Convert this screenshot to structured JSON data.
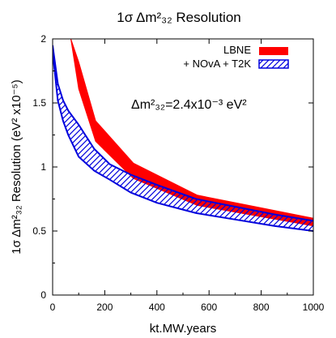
{
  "chart_data": {
    "type": "area",
    "title": "1σ Δm²₃₂ Resolution",
    "xlabel": "kt.MW.years",
    "ylabel": "1σ Δm²₃₂ Resolution (eV² x10⁻⁵)",
    "xlim": [
      0,
      1000
    ],
    "ylim": [
      0,
      2
    ],
    "xticks": [
      0,
      200,
      400,
      600,
      800,
      1000
    ],
    "yticks": [
      0,
      0.5,
      1,
      1.5,
      2
    ],
    "x_tick_labels": [
      "0",
      "200",
      "400",
      "600",
      "800",
      "1000"
    ],
    "y_tick_labels": [
      "0",
      "0.5",
      "1",
      "1.5",
      "2"
    ],
    "grid": false,
    "legend_position": "top-right",
    "annotation": "Δm²₃₂=2.4x10⁻³ eV²",
    "series": [
      {
        "name": "LBNE",
        "color": "#ff0000",
        "style": "filled-band",
        "x": [
          70,
          100,
          165,
          310,
          555,
          1000
        ],
        "upper": [
          2.0,
          1.82,
          1.36,
          1.03,
          0.78,
          0.6
        ],
        "lower": [
          2.0,
          1.61,
          1.2,
          0.91,
          0.7,
          0.54
        ]
      },
      {
        "name": "+ NOvA + T2K",
        "color": "#0000dd",
        "style": "hatched-band",
        "x": [
          0,
          20,
          40,
          60,
          100,
          160,
          220,
          300,
          400,
          550,
          700,
          850,
          1000
        ],
        "upper": [
          1.95,
          1.65,
          1.52,
          1.44,
          1.33,
          1.14,
          1.02,
          0.94,
          0.86,
          0.75,
          0.69,
          0.63,
          0.58
        ],
        "lower": [
          1.9,
          1.52,
          1.36,
          1.25,
          1.08,
          0.97,
          0.9,
          0.8,
          0.72,
          0.64,
          0.59,
          0.54,
          0.5
        ]
      }
    ]
  }
}
